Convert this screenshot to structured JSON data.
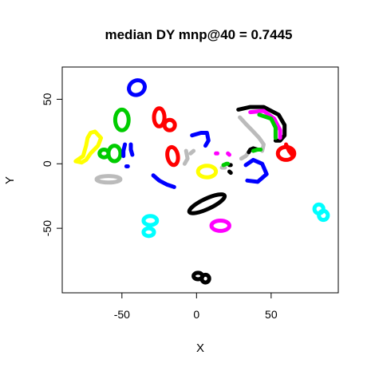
{
  "chart_data": {
    "type": "scatter",
    "title": "median DY mnp@40 = 0.7445",
    "xlabel": "X",
    "ylabel": "Y",
    "xlim": [
      -90,
      95
    ],
    "ylim": [
      -100,
      75
    ],
    "xticks": [
      "-50",
      "0",
      "50"
    ],
    "xtick_values": [
      -50,
      0,
      50
    ],
    "yticks": [
      "-50",
      "0",
      "50"
    ],
    "ytick_values": [
      -50,
      0,
      50
    ],
    "grid": false,
    "legend": "none",
    "clusters": [
      {
        "shape": "ring",
        "color": "#0000ff",
        "cx": -40,
        "cy": 59,
        "rx": 5.5,
        "ry": 5.5,
        "rot": -30
      },
      {
        "shape": "ring",
        "color": "#00cc00",
        "cx": -50,
        "cy": 34,
        "rx": 4.5,
        "ry": 8,
        "rot": 0
      },
      {
        "shape": "ring",
        "color": "#ff0000",
        "cx": -25,
        "cy": 36,
        "rx": 3.5,
        "ry": 7,
        "rot": 0
      },
      {
        "shape": "ring",
        "color": "#ff0000",
        "cx": -18,
        "cy": 30,
        "rx": 3.5,
        "ry": 4,
        "rot": 0
      },
      {
        "shape": "poly",
        "color": "#ffff00",
        "points": [
          [
            -81,
            2
          ],
          [
            -76,
            6
          ],
          [
            -74,
            14
          ],
          [
            -73,
            20
          ],
          [
            -71,
            24
          ],
          [
            -68,
            25
          ],
          [
            -64,
            20
          ],
          [
            -66,
            14
          ],
          [
            -71,
            8
          ],
          [
            -74,
            3
          ],
          [
            -77,
            1
          ],
          [
            -81,
            2
          ]
        ]
      },
      {
        "shape": "ring",
        "color": "#00cc00",
        "cx": -55,
        "cy": 8,
        "rx": 4,
        "ry": 6,
        "rot": 0
      },
      {
        "shape": "ring",
        "color": "#00cc00",
        "cx": -62,
        "cy": 8,
        "rx": 3,
        "ry": 3,
        "rot": 0
      },
      {
        "shape": "poly",
        "color": "#0000ff",
        "points": [
          [
            -48,
            15
          ],
          [
            -49,
            10
          ],
          [
            -49,
            6
          ]
        ]
      },
      {
        "shape": "poly",
        "color": "#0000ff",
        "points": [
          [
            -44,
            15
          ],
          [
            -44,
            11
          ],
          [
            -43,
            7
          ]
        ]
      },
      {
        "shape": "poly",
        "color": "#0000ff",
        "points": [
          [
            -47,
            -2
          ],
          [
            -46,
            -2
          ]
        ]
      },
      {
        "shape": "ring",
        "color": "#bbbbbb",
        "cx": -59,
        "cy": -12,
        "rx": 8,
        "ry": 2.5,
        "rot": 0
      },
      {
        "shape": "ring",
        "color": "#ff0000",
        "cx": -16,
        "cy": 6,
        "rx": 3.5,
        "ry": 7,
        "rot": -10
      },
      {
        "shape": "poly",
        "color": "#bbbbbb",
        "points": [
          [
            -7,
            10
          ],
          [
            -6,
            4
          ],
          [
            -8,
            0
          ]
        ]
      },
      {
        "shape": "poly",
        "color": "#bbbbbb",
        "points": [
          [
            -4,
            8
          ],
          [
            -2,
            10
          ]
        ]
      },
      {
        "shape": "poly",
        "color": "#0000ff",
        "points": [
          [
            -3,
            22
          ],
          [
            3,
            24
          ],
          [
            7,
            24
          ],
          [
            8,
            18
          ],
          [
            6,
            14
          ]
        ]
      },
      {
        "shape": "poly",
        "color": "#0000ff",
        "points": [
          [
            -29,
            -9
          ],
          [
            -25,
            -13
          ],
          [
            -20,
            -16
          ],
          [
            -15,
            -18
          ]
        ]
      },
      {
        "shape": "ring",
        "color": "#ffff00",
        "cx": 7,
        "cy": -6,
        "rx": 6,
        "ry": 4.5,
        "rot": 0
      },
      {
        "shape": "poly",
        "color": "#ff00ff",
        "points": [
          [
            13,
            8
          ],
          [
            14,
            8
          ]
        ]
      },
      {
        "shape": "poly",
        "color": "#ff00ff",
        "points": [
          [
            21,
            8
          ],
          [
            22,
            7
          ]
        ]
      },
      {
        "shape": "poly",
        "color": "#bbbbbb",
        "points": [
          [
            17,
            -3
          ],
          [
            19,
            -3
          ]
        ]
      },
      {
        "shape": "poly",
        "color": "#000000",
        "points": [
          [
            22,
            -1
          ],
          [
            23,
            -1
          ]
        ]
      },
      {
        "shape": "poly",
        "color": "#000000",
        "points": [
          [
            22,
            -6
          ],
          [
            23,
            -7
          ]
        ]
      },
      {
        "shape": "poly",
        "color": "#00cc00",
        "points": [
          [
            18,
            -1
          ],
          [
            20,
            0
          ],
          [
            21,
            0
          ]
        ]
      },
      {
        "shape": "poly",
        "color": "#0000ff",
        "points": [
          [
            34,
            -13
          ],
          [
            41,
            -14
          ],
          [
            47,
            -8
          ],
          [
            44,
            0
          ],
          [
            38,
            3
          ],
          [
            33,
            -1
          ]
        ]
      },
      {
        "shape": "poly",
        "color": "#000000",
        "points": [
          [
            28,
            42
          ],
          [
            36,
            44
          ],
          [
            45,
            44
          ],
          [
            55,
            38
          ],
          [
            59,
            30
          ],
          [
            59,
            22
          ],
          [
            56,
            18
          ],
          [
            53,
            18
          ]
        ]
      },
      {
        "shape": "poly",
        "color": "#ff00ff",
        "points": [
          [
            36,
            40
          ],
          [
            45,
            41
          ],
          [
            52,
            35
          ],
          [
            56,
            26
          ],
          [
            56,
            20
          ]
        ]
      },
      {
        "shape": "poly",
        "color": "#00cc00",
        "points": [
          [
            42,
            38
          ],
          [
            50,
            35
          ],
          [
            53,
            28
          ],
          [
            53,
            20
          ]
        ]
      },
      {
        "shape": "poly",
        "color": "#bbbbbb",
        "points": [
          [
            29,
            36
          ],
          [
            33,
            31
          ],
          [
            38,
            25
          ],
          [
            42,
            20
          ],
          [
            45,
            15
          ],
          [
            44,
            10
          ]
        ]
      },
      {
        "shape": "poly",
        "color": "#bbbbbb",
        "points": [
          [
            30,
            4
          ],
          [
            33,
            6
          ],
          [
            35,
            9
          ]
        ]
      },
      {
        "shape": "poly",
        "color": "#000000",
        "points": [
          [
            35,
            9
          ],
          [
            36,
            11
          ],
          [
            38,
            12
          ],
          [
            41,
            11
          ]
        ]
      },
      {
        "shape": "poly",
        "color": "#00cc00",
        "points": [
          [
            38,
            10
          ],
          [
            41,
            11
          ],
          [
            43,
            11
          ]
        ]
      },
      {
        "shape": "ring",
        "color": "#ff0000",
        "cx": 60,
        "cy": 8,
        "rx": 5.5,
        "ry": 5,
        "rot": 0
      },
      {
        "shape": "poly",
        "color": "#ff0000",
        "points": [
          [
            60,
            15
          ],
          [
            62,
            10
          ],
          [
            64,
            7
          ]
        ]
      },
      {
        "shape": "ring",
        "color": "#000000",
        "cx": 7,
        "cy": -31,
        "rx": 13,
        "ry": 4,
        "rot": -25
      },
      {
        "shape": "ring",
        "color": "#ff00ff",
        "cx": 16,
        "cy": -48,
        "rx": 6,
        "ry": 4,
        "rot": 0
      },
      {
        "shape": "ring",
        "color": "#00ffff",
        "cx": -31,
        "cy": -44,
        "rx": 4.5,
        "ry": 3.5,
        "rot": 0
      },
      {
        "shape": "ring",
        "color": "#00ffff",
        "cx": -32,
        "cy": -53,
        "rx": 3.5,
        "ry": 3,
        "rot": 0
      },
      {
        "shape": "ring",
        "color": "#00ffff",
        "cx": 82,
        "cy": -35,
        "rx": 3,
        "ry": 3.5,
        "rot": 0
      },
      {
        "shape": "ring",
        "color": "#00ffff",
        "cx": 85,
        "cy": -40,
        "rx": 3,
        "ry": 3.5,
        "rot": 0
      },
      {
        "shape": "ring",
        "color": "#000000",
        "cx": 1,
        "cy": -87,
        "rx": 3,
        "ry": 2.5,
        "rot": 0
      },
      {
        "shape": "ring",
        "color": "#000000",
        "cx": 6,
        "cy": -89,
        "rx": 2.5,
        "ry": 3,
        "rot": 0
      }
    ]
  }
}
